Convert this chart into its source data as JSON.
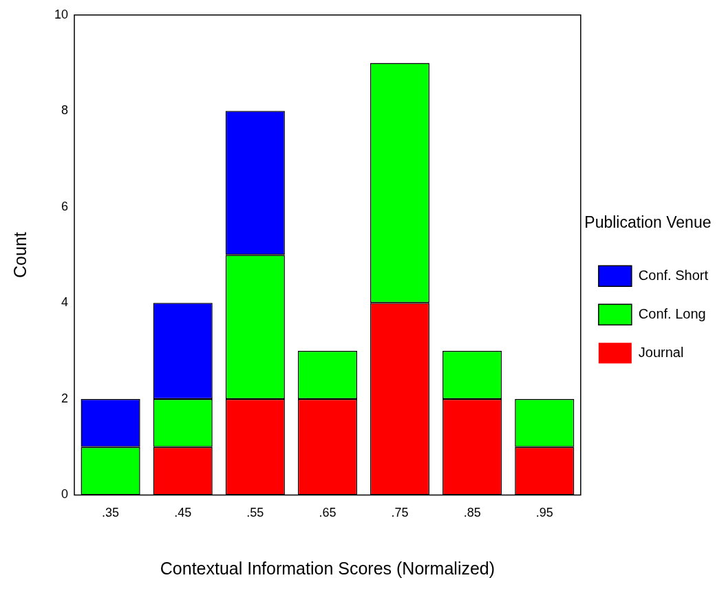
{
  "chart_data": {
    "type": "bar",
    "stacked": true,
    "xlabel": "Contextual Information Scores (Normalized)",
    "ylabel": "Count",
    "legend_title": "Publication Venue",
    "legend": "right",
    "categories": [
      ".35",
      ".45",
      ".55",
      ".65",
      ".75",
      ".85",
      ".95"
    ],
    "ylim": [
      0,
      10
    ],
    "yticks": [
      0,
      2,
      4,
      6,
      8,
      10
    ],
    "grid": false,
    "series": [
      {
        "name": "Journal",
        "color": "#ff0000",
        "values": [
          0,
          1,
          2,
          2,
          4,
          2,
          1
        ]
      },
      {
        "name": "Conf. Long",
        "color": "#00ff00",
        "values": [
          1,
          1,
          3,
          1,
          5,
          1,
          1
        ]
      },
      {
        "name": "Conf. Short",
        "color": "#0000ff",
        "values": [
          1,
          2,
          3,
          0,
          0,
          0,
          0
        ]
      }
    ]
  }
}
